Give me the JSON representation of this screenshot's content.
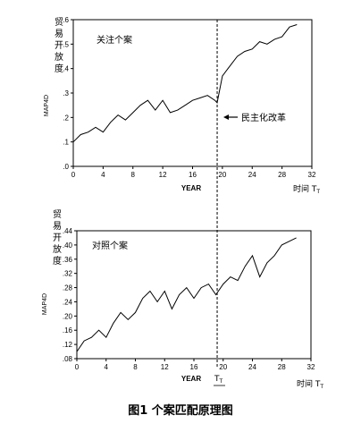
{
  "figure_caption": "图1   个案匹配原理图",
  "shared": {
    "ylabel_chinese": [
      "贸",
      "易",
      "开",
      "放",
      "度"
    ],
    "ylabel_code": "MAP4D",
    "xlabel": "YEAR",
    "time_label": "时间 T",
    "time_sub": "T",
    "treatment_x": 19.3
  },
  "chart_data": [
    {
      "type": "line",
      "title": "关注个案",
      "annotation": "民主化改革",
      "xlim": [
        0,
        32
      ],
      "ylim": [
        0,
        0.6
      ],
      "xticks": [
        0,
        4,
        8,
        12,
        16,
        20,
        24,
        28,
        32
      ],
      "xtick_labels": [
        "0",
        "4",
        "8",
        "12",
        "16",
        "20",
        "24",
        "28",
        "32"
      ],
      "yticks": [
        0,
        0.1,
        0.2,
        0.3,
        0.4,
        0.5,
        0.6
      ],
      "ytick_labels": [
        ".0",
        ".1",
        ".2",
        ".3",
        ".4",
        ".5",
        ".6"
      ],
      "series": [
        {
          "x": [
            0,
            1,
            2,
            3,
            4,
            5,
            6,
            7,
            8,
            9,
            10,
            11,
            12,
            13,
            14,
            15,
            16,
            17,
            18,
            19,
            19.3,
            20,
            21,
            22,
            23,
            24,
            25,
            26,
            27,
            28,
            29,
            30
          ],
          "y": [
            0.1,
            0.13,
            0.14,
            0.16,
            0.14,
            0.18,
            0.21,
            0.19,
            0.22,
            0.25,
            0.27,
            0.23,
            0.27,
            0.22,
            0.23,
            0.25,
            0.27,
            0.28,
            0.29,
            0.27,
            0.26,
            0.37,
            0.41,
            0.45,
            0.47,
            0.48,
            0.51,
            0.5,
            0.52,
            0.53,
            0.57,
            0.58
          ]
        }
      ]
    },
    {
      "type": "line",
      "title": "对照个案",
      "xlim": [
        0,
        32
      ],
      "ylim": [
        0.08,
        0.44
      ],
      "xticks": [
        0,
        4,
        8,
        12,
        16,
        20,
        24,
        28,
        32
      ],
      "xtick_labels": [
        "0",
        "4",
        "8",
        "12",
        "16",
        "20",
        "24",
        "28",
        "32"
      ],
      "yticks": [
        0.08,
        0.12,
        0.16,
        0.2,
        0.24,
        0.28,
        0.32,
        0.36,
        0.4,
        0.44
      ],
      "ytick_labels": [
        ".08",
        ".12",
        ".16",
        ".20",
        ".24",
        ".28",
        ".32",
        ".36",
        ".40",
        ".44"
      ],
      "series": [
        {
          "x": [
            0,
            1,
            2,
            3,
            4,
            5,
            6,
            7,
            8,
            9,
            10,
            11,
            12,
            13,
            14,
            15,
            16,
            17,
            18,
            19,
            20,
            21,
            22,
            23,
            24,
            25,
            26,
            27,
            28,
            29,
            30
          ],
          "y": [
            0.1,
            0.13,
            0.14,
            0.16,
            0.14,
            0.18,
            0.21,
            0.19,
            0.21,
            0.25,
            0.27,
            0.24,
            0.27,
            0.22,
            0.26,
            0.28,
            0.25,
            0.28,
            0.29,
            0.26,
            0.29,
            0.31,
            0.3,
            0.34,
            0.37,
            0.31,
            0.35,
            0.37,
            0.4,
            0.41,
            0.42
          ]
        }
      ]
    }
  ]
}
